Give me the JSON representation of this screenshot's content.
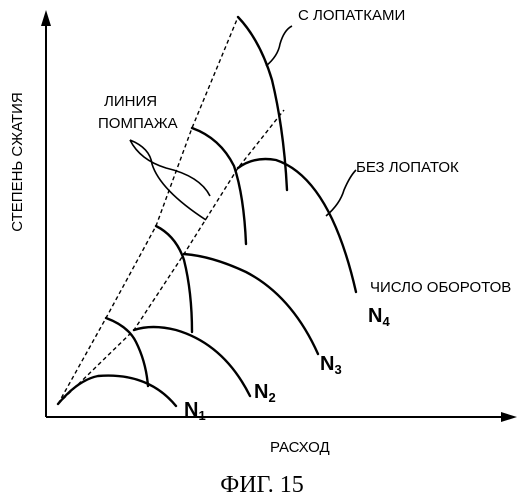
{
  "diagram": {
    "y_axis_label": "СТЕПЕНЬ СЖАТИЯ",
    "x_axis_label": "РАСХОД",
    "surge_line_label_line1": "ЛИНИЯ",
    "surge_line_label_line2": "ПОМПАЖА",
    "with_vanes_label": "С ЛОПАТКАМИ",
    "without_vanes_label": "БЕЗ ЛОПАТОК",
    "speed_label": "ЧИСЛО ОБОРОТОВ",
    "speed_lines": [
      {
        "letter": "N",
        "index": "1"
      },
      {
        "letter": "N",
        "index": "2"
      },
      {
        "letter": "N",
        "index": "3"
      },
      {
        "letter": "N",
        "index": "4"
      }
    ],
    "caption": "ФИГ. 15"
  }
}
